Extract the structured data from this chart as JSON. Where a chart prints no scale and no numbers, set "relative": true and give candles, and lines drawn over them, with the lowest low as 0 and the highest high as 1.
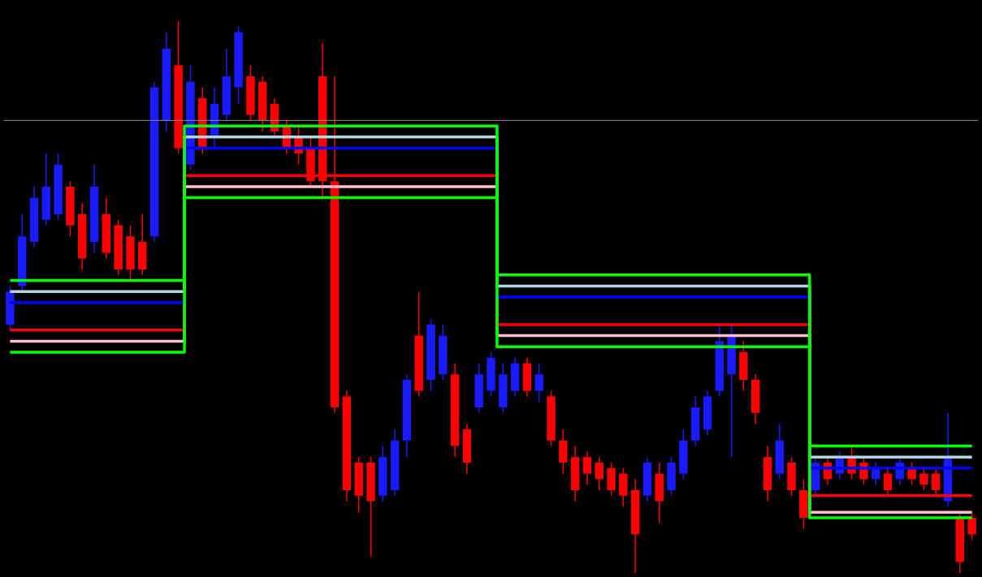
{
  "chart_data": {
    "type": "candlestick",
    "relative": true,
    "categories": [
      null,
      null,
      null,
      null,
      null,
      null,
      null,
      null,
      null,
      null,
      null,
      null,
      null,
      null,
      null,
      null,
      null,
      null,
      null,
      null,
      null,
      null,
      null,
      null,
      null,
      null,
      null,
      null,
      null,
      null,
      null,
      null,
      null,
      null,
      null,
      null,
      null,
      null,
      null,
      null,
      null,
      null,
      null,
      null,
      null,
      null,
      null,
      null,
      null,
      null,
      null,
      null,
      null,
      null,
      null,
      null,
      null,
      null,
      null,
      null,
      null,
      null,
      null,
      null,
      null,
      null,
      null,
      null,
      null,
      null,
      null,
      null,
      null,
      null,
      null,
      null,
      null,
      null,
      null,
      null,
      null
    ],
    "ohlc": [
      [
        0.45,
        0.52,
        0.44,
        0.51
      ],
      [
        0.52,
        0.65,
        0.51,
        0.61
      ],
      [
        0.6,
        0.7,
        0.59,
        0.68
      ],
      [
        0.64,
        0.76,
        0.63,
        0.7
      ],
      [
        0.65,
        0.76,
        0.64,
        0.74
      ],
      [
        0.7,
        0.71,
        0.61,
        0.63
      ],
      [
        0.65,
        0.67,
        0.55,
        0.57
      ],
      [
        0.6,
        0.74,
        0.58,
        0.7
      ],
      [
        0.65,
        0.68,
        0.57,
        0.58
      ],
      [
        0.63,
        0.64,
        0.54,
        0.55
      ],
      [
        0.61,
        0.63,
        0.53,
        0.55
      ],
      [
        0.6,
        0.65,
        0.54,
        0.55
      ],
      [
        0.61,
        0.89,
        0.6,
        0.88
      ],
      [
        0.82,
        0.98,
        0.8,
        0.95
      ],
      [
        0.92,
        1.0,
        0.76,
        0.77
      ],
      [
        0.74,
        0.92,
        0.73,
        0.89
      ],
      [
        0.86,
        0.88,
        0.76,
        0.77
      ],
      [
        0.79,
        0.88,
        0.77,
        0.85
      ],
      [
        0.83,
        0.95,
        0.82,
        0.9
      ],
      [
        0.88,
        0.99,
        0.85,
        0.98
      ],
      [
        0.9,
        0.92,
        0.82,
        0.83
      ],
      [
        0.89,
        0.9,
        0.8,
        0.82
      ],
      [
        0.85,
        0.86,
        0.79,
        0.8
      ],
      [
        0.81,
        0.82,
        0.76,
        0.77
      ],
      [
        0.79,
        0.81,
        0.74,
        0.76
      ],
      [
        0.77,
        0.79,
        0.7,
        0.71
      ],
      [
        0.9,
        0.96,
        0.68,
        0.71
      ],
      [
        0.71,
        0.9,
        0.29,
        0.3
      ],
      [
        0.32,
        0.33,
        0.13,
        0.15
      ],
      [
        0.2,
        0.21,
        0.11,
        0.14
      ],
      [
        0.2,
        0.21,
        0.03,
        0.13
      ],
      [
        0.14,
        0.23,
        0.13,
        0.21
      ],
      [
        0.15,
        0.26,
        0.14,
        0.24
      ],
      [
        0.24,
        0.36,
        0.21,
        0.35
      ],
      [
        0.43,
        0.51,
        0.32,
        0.33
      ],
      [
        0.35,
        0.46,
        0.33,
        0.45
      ],
      [
        0.36,
        0.45,
        0.35,
        0.43
      ],
      [
        0.36,
        0.38,
        0.21,
        0.23
      ],
      [
        0.26,
        0.27,
        0.18,
        0.2
      ],
      [
        0.3,
        0.38,
        0.29,
        0.36
      ],
      [
        0.33,
        0.4,
        0.32,
        0.39
      ],
      [
        0.3,
        0.38,
        0.29,
        0.36
      ],
      [
        0.33,
        0.39,
        0.32,
        0.38
      ],
      [
        0.38,
        0.39,
        0.32,
        0.33
      ],
      [
        0.33,
        0.38,
        0.31,
        0.36
      ],
      [
        0.32,
        0.33,
        0.23,
        0.24
      ],
      [
        0.24,
        0.26,
        0.18,
        0.2
      ],
      [
        0.21,
        0.23,
        0.13,
        0.15
      ],
      [
        0.21,
        0.22,
        0.16,
        0.18
      ],
      [
        0.2,
        0.21,
        0.15,
        0.17
      ],
      [
        0.19,
        0.2,
        0.14,
        0.15
      ],
      [
        0.18,
        0.19,
        0.12,
        0.14
      ],
      [
        0.15,
        0.17,
        0.0,
        0.07
      ],
      [
        0.14,
        0.21,
        0.13,
        0.2
      ],
      [
        0.18,
        0.2,
        0.09,
        0.13
      ],
      [
        0.15,
        0.21,
        0.14,
        0.2
      ],
      [
        0.18,
        0.26,
        0.17,
        0.24
      ],
      [
        0.24,
        0.32,
        0.23,
        0.3
      ],
      [
        0.26,
        0.33,
        0.25,
        0.32
      ],
      [
        0.33,
        0.45,
        0.32,
        0.42
      ],
      [
        0.36,
        0.45,
        0.21,
        0.43
      ],
      [
        0.4,
        0.42,
        0.33,
        0.35
      ],
      [
        0.35,
        0.36,
        0.27,
        0.29
      ],
      [
        0.21,
        0.23,
        0.13,
        0.15
      ],
      [
        0.18,
        0.27,
        0.17,
        0.24
      ],
      [
        0.2,
        0.21,
        0.14,
        0.15
      ],
      [
        0.15,
        0.17,
        0.08,
        0.1
      ],
      [
        0.15,
        0.21,
        0.14,
        0.2
      ],
      [
        0.2,
        0.21,
        0.16,
        0.17
      ],
      [
        0.18,
        0.22,
        0.17,
        0.21
      ],
      [
        0.21,
        0.23,
        0.17,
        0.18
      ],
      [
        0.2,
        0.21,
        0.16,
        0.17
      ],
      [
        0.17,
        0.2,
        0.16,
        0.19
      ],
      [
        0.18,
        0.19,
        0.14,
        0.15
      ],
      [
        0.17,
        0.21,
        0.16,
        0.2
      ],
      [
        0.19,
        0.2,
        0.16,
        0.17
      ],
      [
        0.18,
        0.19,
        0.15,
        0.16
      ],
      [
        0.18,
        0.19,
        0.14,
        0.15
      ],
      [
        0.13,
        0.29,
        0.12,
        0.21
      ],
      [
        0.1,
        0.11,
        0.0,
        0.02
      ],
      [
        0.1,
        0.11,
        0.06,
        0.07
      ]
    ],
    "colors": [
      "#1a1aff",
      "#1a1aff",
      "#1a1aff",
      "#1a1aff",
      "#1a1aff",
      "#ff0000",
      "#ff0000",
      "#1a1aff",
      "#ff0000",
      "#ff0000",
      "#ff0000",
      "#ff0000",
      "#1a1aff",
      "#1a1aff",
      "#ff0000",
      "#1a1aff",
      "#ff0000",
      "#1a1aff",
      "#1a1aff",
      "#1a1aff",
      "#ff0000",
      "#ff0000",
      "#ff0000",
      "#ff0000",
      "#ff0000",
      "#ff0000",
      "#ff0000",
      "#ff0000",
      "#ff0000",
      "#ff0000",
      "#ff0000",
      "#1a1aff",
      "#1a1aff",
      "#1a1aff",
      "#ff0000",
      "#1a1aff",
      "#1a1aff",
      "#ff0000",
      "#ff0000",
      "#1a1aff",
      "#1a1aff",
      "#1a1aff",
      "#1a1aff",
      "#ff0000",
      "#1a1aff",
      "#ff0000",
      "#ff0000",
      "#ff0000",
      "#ff0000",
      "#ff0000",
      "#ff0000",
      "#ff0000",
      "#ff0000",
      "#1a1aff",
      "#ff0000",
      "#1a1aff",
      "#1a1aff",
      "#1a1aff",
      "#1a1aff",
      "#1a1aff",
      "#1a1aff",
      "#ff0000",
      "#ff0000",
      "#ff0000",
      "#1a1aff",
      "#ff0000",
      "#ff0000",
      "#1a1aff",
      "#ff0000",
      "#1a1aff",
      "#ff0000",
      "#ff0000",
      "#1a1aff",
      "#ff0000",
      "#1a1aff",
      "#ff0000",
      "#ff0000",
      "#ff0000",
      "#1a1aff",
      "#ff0000",
      "#ff0000"
    ],
    "series": [
      {
        "type": "step",
        "color": "#ffc0cb",
        "values": [
          0.42,
          0.42,
          0.42,
          0.42,
          0.42,
          0.42,
          0.42,
          0.42,
          0.42,
          0.42,
          0.42,
          0.42,
          0.42,
          0.42,
          0.42,
          0.7,
          0.7,
          0.7,
          0.7,
          0.7,
          0.7,
          0.7,
          0.7,
          0.7,
          0.7,
          0.7,
          0.7,
          0.7,
          0.7,
          0.7,
          0.7,
          0.7,
          0.7,
          0.7,
          0.7,
          0.7,
          0.7,
          0.7,
          0.7,
          0.7,
          0.7,
          0.43,
          0.43,
          0.43,
          0.43,
          0.43,
          0.43,
          0.43,
          0.43,
          0.43,
          0.43,
          0.43,
          0.43,
          0.43,
          0.43,
          0.43,
          0.43,
          0.43,
          0.43,
          0.43,
          0.43,
          0.43,
          0.43,
          0.43,
          0.43,
          0.43,
          0.43,
          0.11,
          0.11,
          0.11,
          0.11,
          0.11,
          0.11,
          0.11,
          0.11,
          0.11,
          0.11,
          0.11,
          0.11,
          0.11,
          0.11
        ]
      },
      {
        "type": "step",
        "color": "#ff0000",
        "values": [
          0.44,
          0.44,
          0.44,
          0.44,
          0.44,
          0.44,
          0.44,
          0.44,
          0.44,
          0.44,
          0.44,
          0.44,
          0.44,
          0.44,
          0.44,
          0.72,
          0.72,
          0.72,
          0.72,
          0.72,
          0.72,
          0.72,
          0.72,
          0.72,
          0.72,
          0.72,
          0.72,
          0.72,
          0.72,
          0.72,
          0.72,
          0.72,
          0.72,
          0.72,
          0.72,
          0.72,
          0.72,
          0.72,
          0.72,
          0.72,
          0.72,
          0.45,
          0.45,
          0.45,
          0.45,
          0.45,
          0.45,
          0.45,
          0.45,
          0.45,
          0.45,
          0.45,
          0.45,
          0.45,
          0.45,
          0.45,
          0.45,
          0.45,
          0.45,
          0.45,
          0.45,
          0.45,
          0.45,
          0.45,
          0.45,
          0.45,
          0.45,
          0.14,
          0.14,
          0.14,
          0.14,
          0.14,
          0.14,
          0.14,
          0.14,
          0.14,
          0.14,
          0.14,
          0.14,
          0.14,
          0.14
        ]
      },
      {
        "type": "step",
        "color": "#0000ff",
        "values": [
          0.49,
          0.49,
          0.49,
          0.49,
          0.49,
          0.49,
          0.49,
          0.49,
          0.49,
          0.49,
          0.49,
          0.49,
          0.49,
          0.49,
          0.49,
          0.77,
          0.77,
          0.77,
          0.77,
          0.77,
          0.77,
          0.77,
          0.77,
          0.77,
          0.77,
          0.77,
          0.77,
          0.77,
          0.77,
          0.77,
          0.77,
          0.77,
          0.77,
          0.77,
          0.77,
          0.77,
          0.77,
          0.77,
          0.77,
          0.77,
          0.77,
          0.5,
          0.5,
          0.5,
          0.5,
          0.5,
          0.5,
          0.5,
          0.5,
          0.5,
          0.5,
          0.5,
          0.5,
          0.5,
          0.5,
          0.5,
          0.5,
          0.5,
          0.5,
          0.5,
          0.5,
          0.5,
          0.5,
          0.5,
          0.5,
          0.5,
          0.5,
          0.19,
          0.19,
          0.19,
          0.19,
          0.19,
          0.19,
          0.19,
          0.19,
          0.19,
          0.19,
          0.19,
          0.19,
          0.19,
          0.19
        ]
      },
      {
        "type": "step",
        "color": "#add8e6",
        "values": [
          0.51,
          0.51,
          0.51,
          0.51,
          0.51,
          0.51,
          0.51,
          0.51,
          0.51,
          0.51,
          0.51,
          0.51,
          0.51,
          0.51,
          0.51,
          0.79,
          0.79,
          0.79,
          0.79,
          0.79,
          0.79,
          0.79,
          0.79,
          0.79,
          0.79,
          0.79,
          0.79,
          0.79,
          0.79,
          0.79,
          0.79,
          0.79,
          0.79,
          0.79,
          0.79,
          0.79,
          0.79,
          0.79,
          0.79,
          0.79,
          0.79,
          0.52,
          0.52,
          0.52,
          0.52,
          0.52,
          0.52,
          0.52,
          0.52,
          0.52,
          0.52,
          0.52,
          0.52,
          0.52,
          0.52,
          0.52,
          0.52,
          0.52,
          0.52,
          0.52,
          0.52,
          0.52,
          0.52,
          0.52,
          0.52,
          0.52,
          0.52,
          0.21,
          0.21,
          0.21,
          0.21,
          0.21,
          0.21,
          0.21,
          0.21,
          0.21,
          0.21,
          0.21,
          0.21,
          0.21,
          0.21
        ]
      },
      {
        "type": "step",
        "color": "#00ff00",
        "values": [
          0.4,
          0.4,
          0.4,
          0.4,
          0.4,
          0.4,
          0.4,
          0.4,
          0.4,
          0.4,
          0.4,
          0.4,
          0.4,
          0.4,
          0.4,
          0.68,
          0.68,
          0.68,
          0.68,
          0.68,
          0.68,
          0.68,
          0.68,
          0.68,
          0.68,
          0.68,
          0.68,
          0.68,
          0.68,
          0.68,
          0.68,
          0.68,
          0.68,
          0.68,
          0.68,
          0.68,
          0.68,
          0.68,
          0.68,
          0.68,
          0.68,
          0.41,
          0.41,
          0.41,
          0.41,
          0.41,
          0.41,
          0.41,
          0.41,
          0.41,
          0.41,
          0.41,
          0.41,
          0.41,
          0.41,
          0.41,
          0.41,
          0.41,
          0.41,
          0.41,
          0.41,
          0.41,
          0.41,
          0.41,
          0.41,
          0.41,
          0.41,
          0.1,
          0.1,
          0.1,
          0.1,
          0.1,
          0.1,
          0.1,
          0.1,
          0.1,
          0.1,
          0.1,
          0.1,
          0.1,
          0.1
        ]
      },
      {
        "type": "step",
        "color": "#00ff00",
        "values": [
          0.53,
          0.53,
          0.53,
          0.53,
          0.53,
          0.53,
          0.53,
          0.53,
          0.53,
          0.53,
          0.53,
          0.53,
          0.53,
          0.53,
          0.53,
          0.81,
          0.81,
          0.81,
          0.81,
          0.81,
          0.81,
          0.81,
          0.81,
          0.81,
          0.81,
          0.81,
          0.81,
          0.81,
          0.81,
          0.81,
          0.81,
          0.81,
          0.81,
          0.81,
          0.81,
          0.81,
          0.81,
          0.81,
          0.81,
          0.81,
          0.81,
          0.54,
          0.54,
          0.54,
          0.54,
          0.54,
          0.54,
          0.54,
          0.54,
          0.54,
          0.54,
          0.54,
          0.54,
          0.54,
          0.54,
          0.54,
          0.54,
          0.54,
          0.54,
          0.54,
          0.54,
          0.54,
          0.54,
          0.54,
          0.54,
          0.54,
          0.54,
          0.23,
          0.23,
          0.23,
          0.23,
          0.23,
          0.23,
          0.23,
          0.23,
          0.23,
          0.23,
          0.23,
          0.23,
          0.23,
          0.23
        ]
      }
    ],
    "ref_lines": [
      {
        "axis": "y",
        "value": 0.82,
        "color": "#8c8c99"
      }
    ]
  }
}
